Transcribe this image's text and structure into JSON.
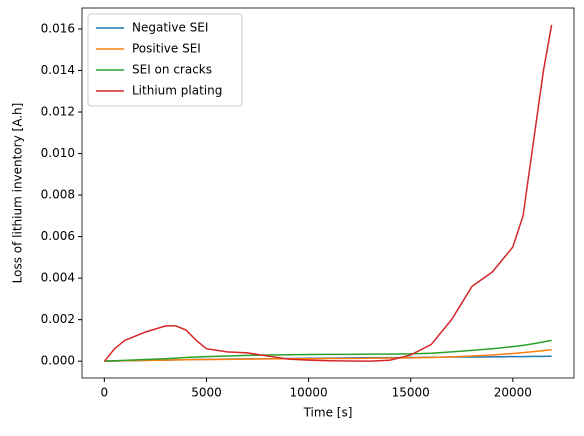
{
  "chart_data": {
    "type": "line",
    "xlabel": "Time [s]",
    "ylabel": "Loss of lithium inventory [A.h]",
    "x": [
      0,
      500,
      1000,
      2000,
      3000,
      3500,
      4000,
      4500,
      5000,
      6000,
      7000,
      8000,
      9000,
      10000,
      11000,
      12000,
      13000,
      14000,
      15000,
      16000,
      17000,
      18000,
      19000,
      20000,
      20500,
      21000,
      21500,
      21900
    ],
    "series": [
      {
        "name": "Negative SEI",
        "color": "#1f77b4",
        "values": [
          0,
          1e-05,
          2e-05,
          4e-05,
          5e-05,
          6e-05,
          7e-05,
          8e-05,
          9e-05,
          0.0001,
          0.00011,
          0.00012,
          0.00013,
          0.00014,
          0.00015,
          0.00016,
          0.00017,
          0.00017,
          0.00018,
          0.00019,
          0.0002,
          0.0002,
          0.00021,
          0.00022,
          0.00022,
          0.00023,
          0.00023,
          0.00024
        ]
      },
      {
        "name": "Positive SEI",
        "color": "#ff7f0e",
        "values": [
          0,
          1e-05,
          2e-05,
          4e-05,
          5e-05,
          6e-05,
          7e-05,
          8e-05,
          8e-05,
          9e-05,
          0.0001,
          0.00011,
          0.00012,
          0.00012,
          0.00013,
          0.00013,
          0.00014,
          0.00015,
          0.00016,
          0.00018,
          0.00021,
          0.00025,
          0.0003,
          0.00037,
          0.00041,
          0.00046,
          0.00051,
          0.00055
        ]
      },
      {
        "name": "SEI on cracks",
        "color": "#2ca02c",
        "values": [
          0,
          2e-05,
          4e-05,
          8e-05,
          0.00012,
          0.00015,
          0.00018,
          0.0002,
          0.00022,
          0.00025,
          0.00028,
          0.0003,
          0.00031,
          0.00032,
          0.00033,
          0.00033,
          0.00034,
          0.00034,
          0.00035,
          0.00038,
          0.00045,
          0.00052,
          0.0006,
          0.0007,
          0.00076,
          0.00084,
          0.00093,
          0.001
        ]
      },
      {
        "name": "Lithium plating",
        "color": "#d62728",
        "values": [
          0,
          0.0006,
          0.001,
          0.0014,
          0.0017,
          0.0017,
          0.0015,
          0.001,
          0.0006,
          0.00045,
          0.0004,
          0.00025,
          0.0001,
          5e-05,
          2e-05,
          1e-05,
          0,
          5e-05,
          0.0003,
          0.0008,
          0.002,
          0.0036,
          0.0043,
          0.0055,
          0.007,
          0.0105,
          0.014,
          0.0162
        ]
      }
    ],
    "xlim": [
      -1095,
      22995
    ],
    "ylim": [
      -0.00081,
      0.01701
    ],
    "xticks": [
      0,
      5000,
      10000,
      15000,
      20000
    ],
    "yticks": [
      {
        "value": 0,
        "label": "0.000"
      },
      {
        "value": 0.002,
        "label": "0.002"
      },
      {
        "value": 0.004,
        "label": "0.004"
      },
      {
        "value": 0.006,
        "label": "0.006"
      },
      {
        "value": 0.008,
        "label": "0.008"
      },
      {
        "value": 0.01,
        "label": "0.010"
      },
      {
        "value": 0.012,
        "label": "0.012"
      },
      {
        "value": 0.014,
        "label": "0.014"
      },
      {
        "value": 0.016,
        "label": "0.016"
      }
    ],
    "legend": "upper left"
  }
}
